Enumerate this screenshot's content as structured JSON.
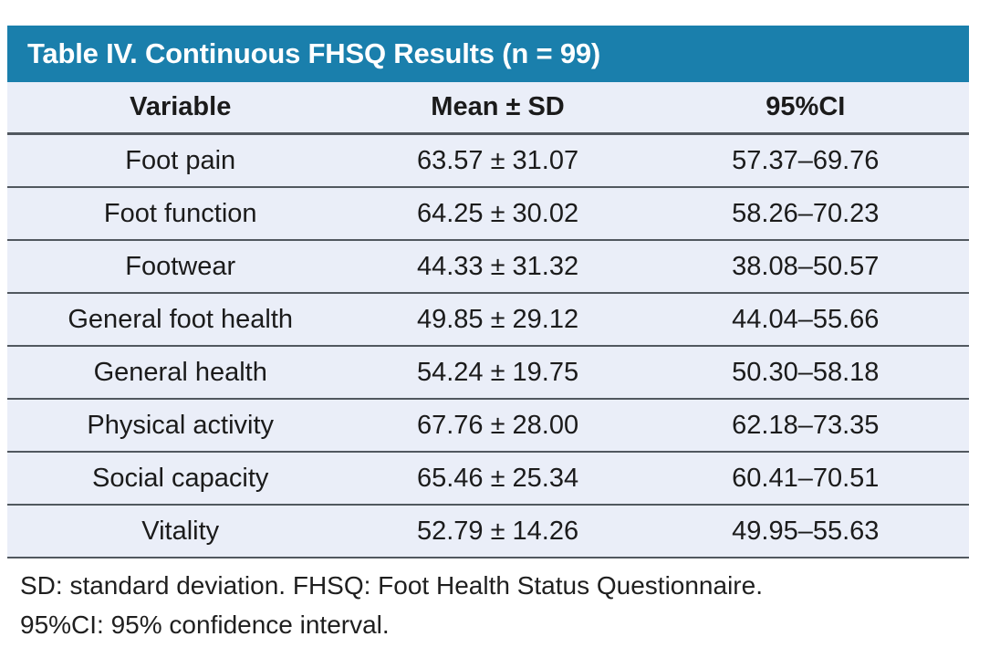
{
  "colors": {
    "page_bg": "#ffffff",
    "accent": "#1a7fac",
    "title_text": "#ffffff",
    "row_bg": "#eaeef8",
    "separator": "#51585f",
    "body_text": "#1b1b1b"
  },
  "table": {
    "title": "Table IV. Continuous FHSQ Results (n = 99)",
    "columns": [
      "Variable",
      "Mean ± SD",
      "95%CI"
    ],
    "rows": [
      {
        "variable": "Foot pain",
        "mean_sd": "63.57 ± 31.07",
        "ci": "57.37–69.76"
      },
      {
        "variable": "Foot function",
        "mean_sd": "64.25 ± 30.02",
        "ci": "58.26–70.23"
      },
      {
        "variable": "Footwear",
        "mean_sd": "44.33 ± 31.32",
        "ci": "38.08–50.57"
      },
      {
        "variable": "General foot health",
        "mean_sd": "49.85 ± 29.12",
        "ci": "44.04–55.66"
      },
      {
        "variable": "General health",
        "mean_sd": "54.24 ± 19.75",
        "ci": "50.30–58.18"
      },
      {
        "variable": "Physical activity",
        "mean_sd": "67.76 ± 28.00",
        "ci": "62.18–73.35"
      },
      {
        "variable": "Social capacity",
        "mean_sd": "65.46 ± 25.34",
        "ci": "60.41–70.51"
      },
      {
        "variable": "Vitality",
        "mean_sd": "52.79 ± 14.26",
        "ci": "49.95–55.63"
      }
    ]
  },
  "footnotes": {
    "line1": "SD: standard deviation. FHSQ: Foot Health Status Questionnaire.",
    "line2": "95%CI: 95% confidence interval."
  }
}
